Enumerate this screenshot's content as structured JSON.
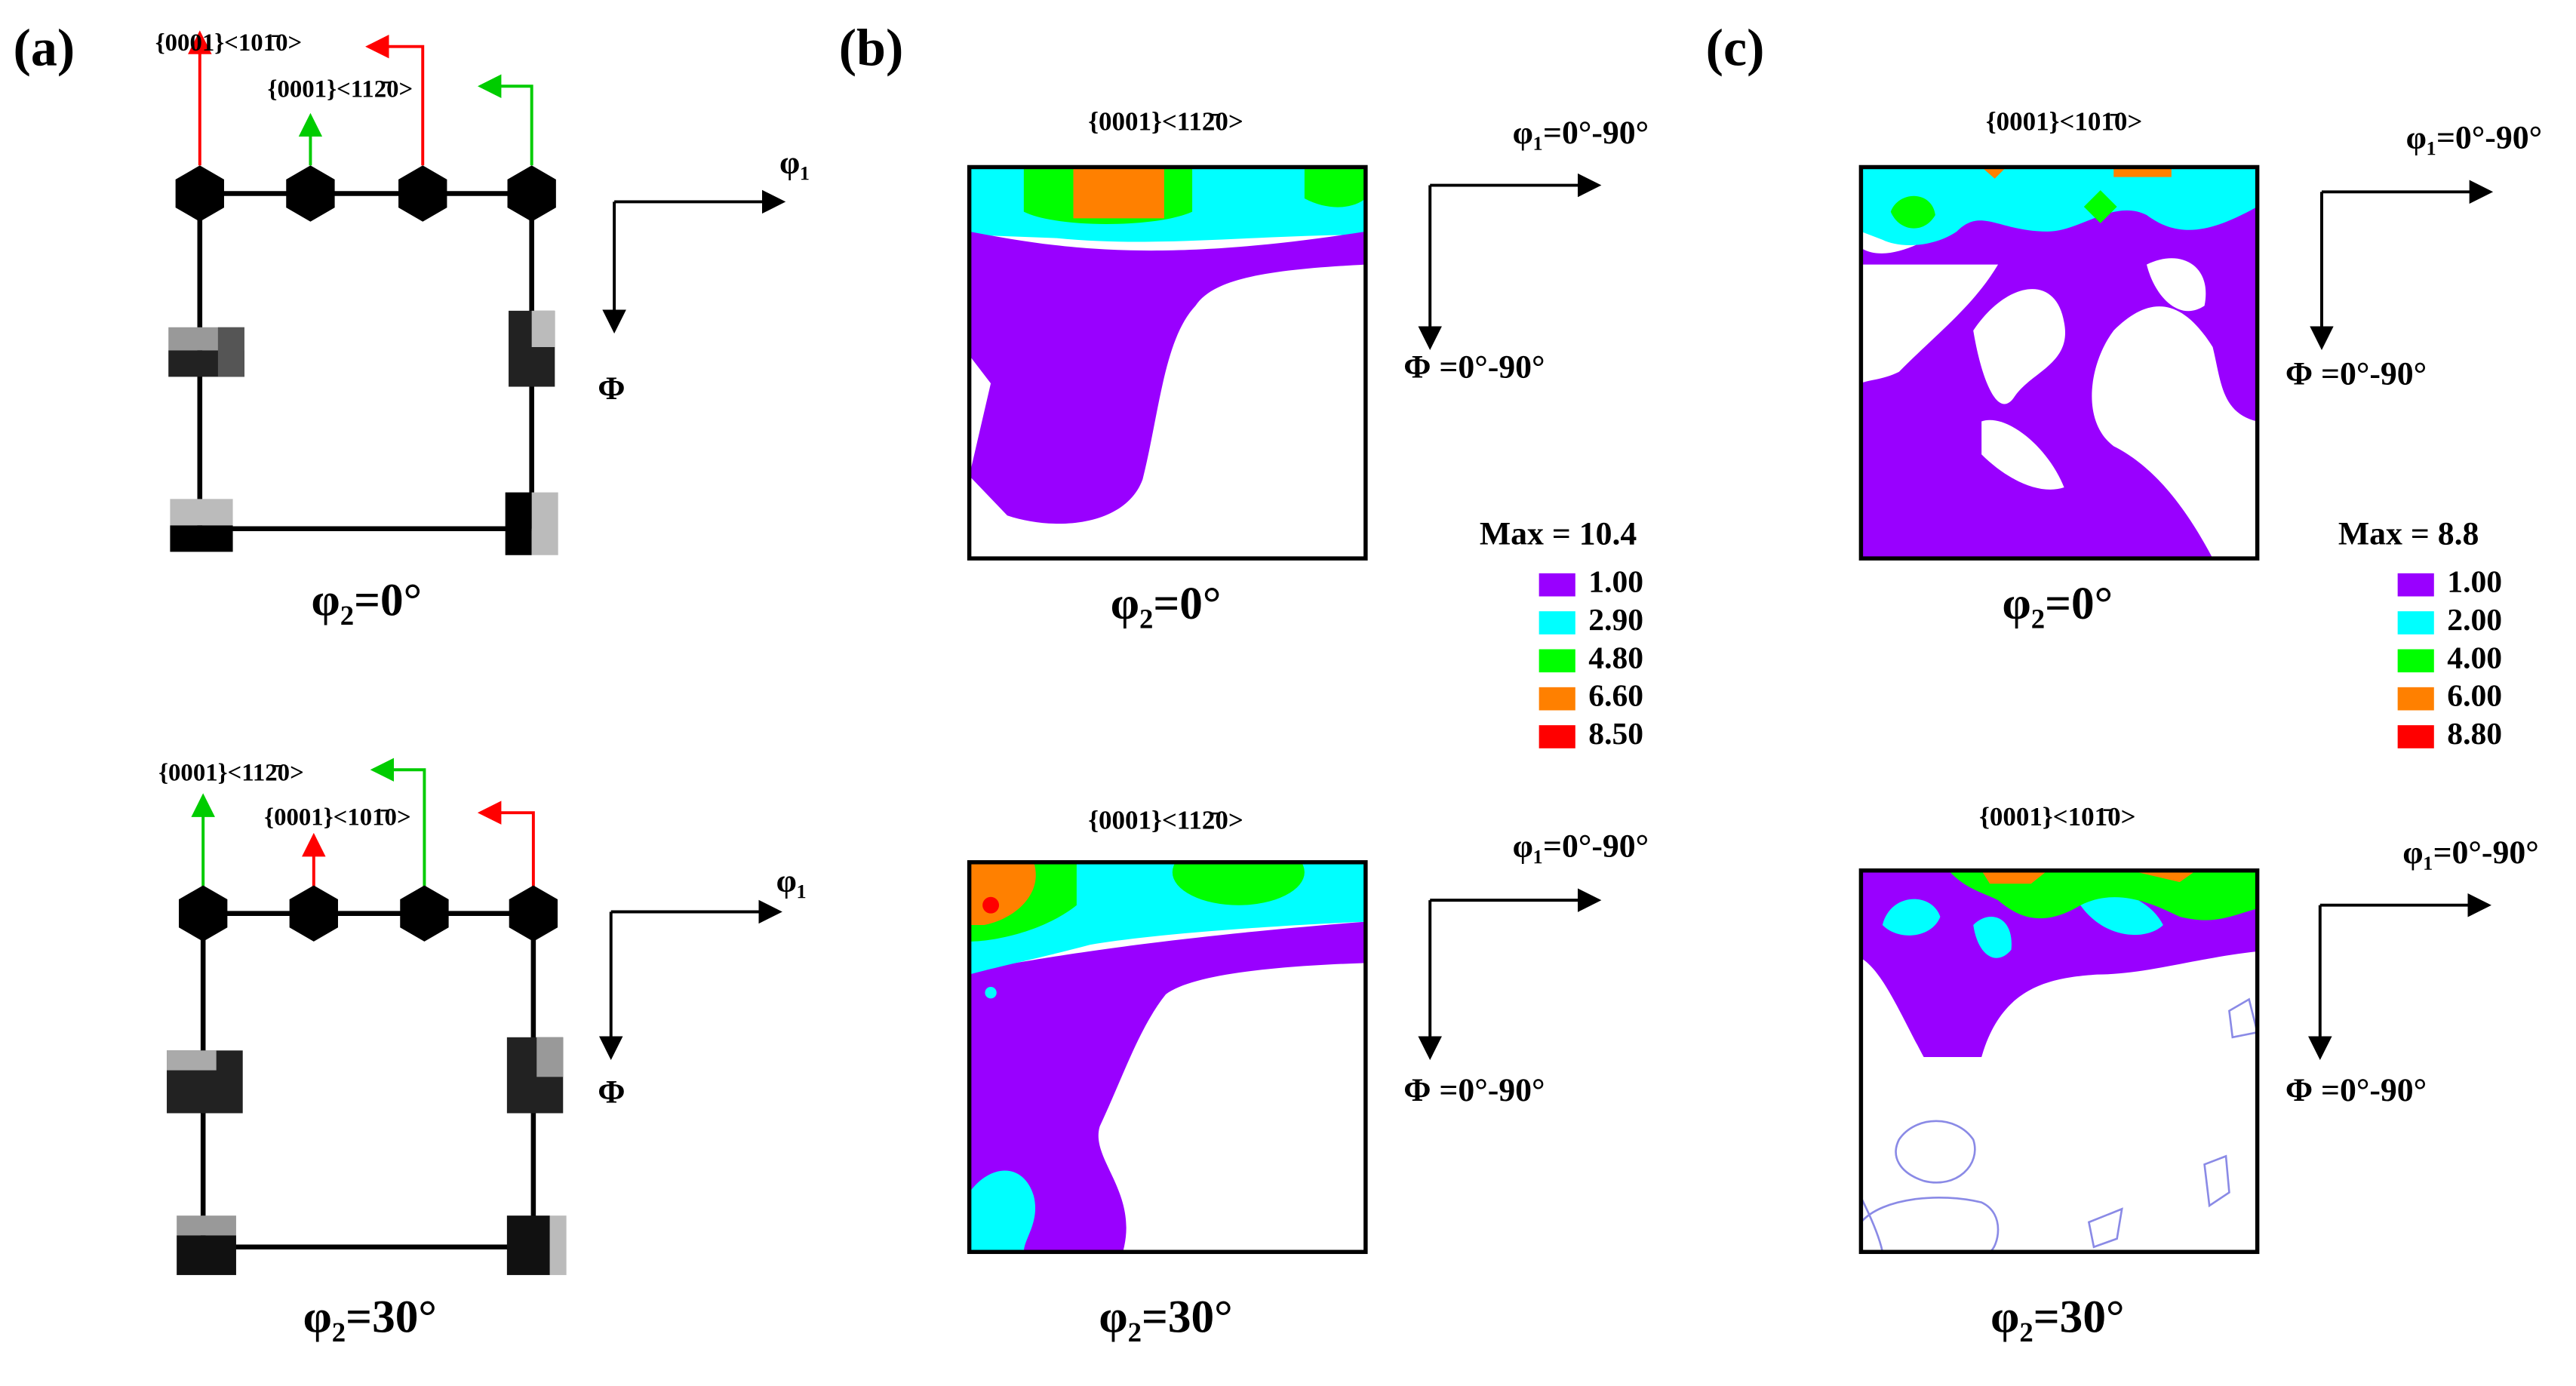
{
  "panels": [
    {
      "label": "(a)",
      "sections": [
        {
          "orientations": [
            "{0001}<101̄0>",
            "{0001}<112̄0>"
          ],
          "axes": {
            "x": "φ₁",
            "y": "Φ"
          },
          "section": "φ₂=0°"
        },
        {
          "orientations": [
            "{0001}<112̄0>",
            "{0001}<101̄0>"
          ],
          "axes": {
            "x": "φ₁",
            "y": "Φ"
          },
          "section": "φ₂=30°"
        }
      ]
    },
    {
      "label": "(b)",
      "sections": [
        {
          "title": "{0001}<112̄0>",
          "axes": {
            "x": "φ₁=0°-90°",
            "y": "Φ =0°-90°"
          },
          "section": "φ₂=0°"
        },
        {
          "title": "{0001}<112̄0>",
          "axes": {
            "x": "φ₁=0°-90°",
            "y": "Φ =0°-90°"
          },
          "section": "φ₂=30°"
        }
      ],
      "legend": {
        "title": "Max = 10.4",
        "levels": [
          {
            "label": "1.00",
            "color": "#9900ff"
          },
          {
            "label": "2.90",
            "color": "#00ffff"
          },
          {
            "label": "4.80",
            "color": "#00ff00"
          },
          {
            "label": "6.60",
            "color": "#ff8000"
          },
          {
            "label": "8.50",
            "color": "#ff0000"
          }
        ]
      }
    },
    {
      "label": "(c)",
      "sections": [
        {
          "title": "{0001}<101̄0>",
          "axes": {
            "x": "φ₁=0°-90°",
            "y": "Φ =0°-90°"
          },
          "section": "φ₂=0°"
        },
        {
          "title": "{0001}<101̄0>",
          "axes": {
            "x": "φ₁=0°-90°",
            "y": "Φ =0°-90°"
          },
          "section": "φ₂=30°"
        }
      ],
      "legend": {
        "title": "Max = 8.8",
        "levels": [
          {
            "label": "1.00",
            "color": "#9900ff"
          },
          {
            "label": "2.00",
            "color": "#00ffff"
          },
          {
            "label": "4.00",
            "color": "#00ff00"
          },
          {
            "label": "6.00",
            "color": "#ff8000"
          },
          {
            "label": "8.80",
            "color": "#ff0000"
          }
        ]
      }
    }
  ]
}
